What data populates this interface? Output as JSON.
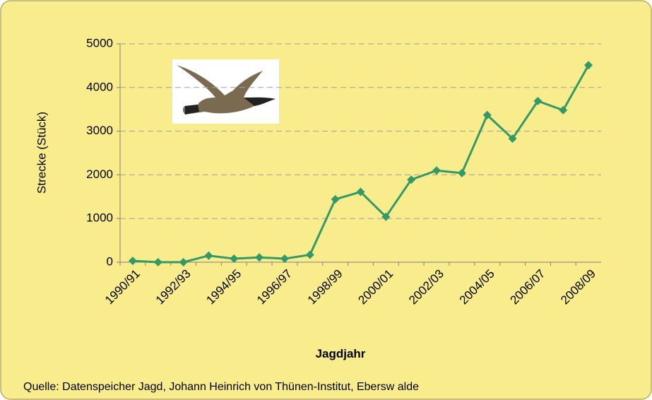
{
  "chart_data": {
    "type": "line",
    "y_label": "Strecke (Stück)",
    "x_label": "Jagdjahr",
    "source": "Quelle: Datenspeicher Jagd, Johann Heinrich von Thünen-Institut, Ebersw alde",
    "categories": [
      "1990/91",
      null,
      "1992/93",
      null,
      "1994/95",
      null,
      "1996/97",
      null,
      "1998/99",
      null,
      "2000/01",
      null,
      "2002/03",
      null,
      "2004/05",
      null,
      "2006/07",
      null,
      "2008/09"
    ],
    "series": [
      {
        "color": "#339966",
        "values": [
          30,
          0,
          0,
          150,
          80,
          110,
          80,
          170,
          1440,
          1610,
          1040,
          1890,
          2100,
          2040,
          3370,
          2830,
          3690,
          3480,
          4510
        ]
      }
    ],
    "ylim": [
      0,
      5000
    ],
    "yticks": [
      0,
      1000,
      2000,
      3000,
      4000,
      5000
    ],
    "grid": true
  }
}
